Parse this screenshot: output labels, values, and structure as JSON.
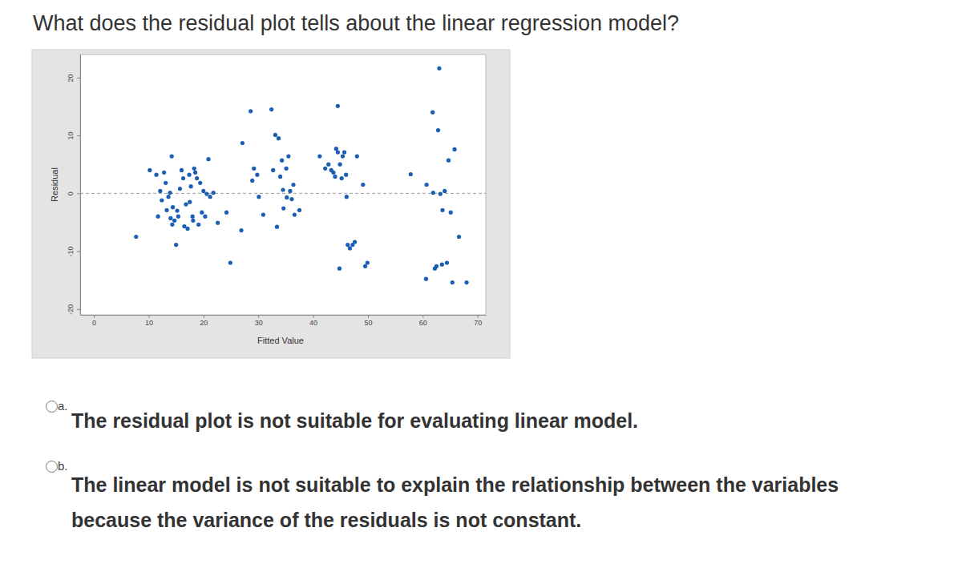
{
  "question": "What does the residual plot tells about the linear regression model?",
  "options": [
    {
      "label": "a.",
      "text": "The residual plot is not suitable for evaluating linear model."
    },
    {
      "label": "b.",
      "text": "The linear model is not suitable to explain the relationship between the variables because the variance of the residuals is not constant."
    }
  ],
  "chart_data": {
    "type": "scatter",
    "x_label": "Fitted Value",
    "y_label": "Residual",
    "color": "#1b5fb4",
    "marker": "circle",
    "reference_line": 0,
    "xlim": [
      -2.5,
      71.5
    ],
    "ylim": [
      -21,
      24
    ],
    "xticks": [
      0,
      10,
      20,
      30,
      40,
      50,
      60,
      70
    ],
    "yticks": [
      -20,
      -10,
      0,
      10,
      20
    ],
    "x": [
      7.7,
      10.2,
      11.4,
      11.7,
      12.1,
      12.4,
      12.8,
      13.1,
      13.3,
      13.6,
      13.9,
      14.0,
      14.2,
      14.3,
      14.4,
      14.7,
      15.0,
      15.2,
      15.4,
      15.7,
      16.0,
      16.3,
      16.5,
      16.8,
      17.1,
      17.4,
      17.5,
      17.7,
      18.0,
      18.1,
      18.3,
      18.5,
      18.8,
      19.1,
      19.4,
      19.7,
      20.0,
      20.3,
      20.6,
      20.9,
      21.2,
      21.8,
      22.6,
      24.2,
      24.9,
      26.9,
      27.1,
      28.6,
      28.9,
      29.2,
      29.8,
      30.1,
      30.9,
      32.4,
      32.7,
      33.1,
      33.4,
      33.7,
      34.0,
      34.3,
      34.5,
      34.6,
      35.1,
      35.2,
      35.5,
      35.8,
      36.1,
      36.4,
      36.6,
      37.5,
      41.2,
      42.2,
      42.8,
      43.3,
      43.7,
      44.0,
      44.2,
      44.5,
      44.5,
      44.8,
      44.9,
      45.2,
      45.4,
      45.7,
      46.0,
      46.1,
      46.3,
      46.7,
      47.2,
      47.6,
      48.0,
      49.1,
      49.5,
      49.9,
      57.8,
      60.6,
      60.7,
      61.8,
      61.9,
      62.2,
      62.5,
      62.8,
      63.0,
      63.2,
      63.5,
      63.6,
      64.0,
      64.4,
      64.7,
      65.1,
      65.4,
      65.8,
      66.6,
      68.0
    ],
    "values": [
      -7.5,
      4.0,
      3.2,
      -4.0,
      0.4,
      -1.2,
      3.6,
      1.8,
      -2.9,
      -0.6,
      0.1,
      -4.3,
      6.4,
      -5.4,
      -2.4,
      -4.7,
      -8.9,
      -3.0,
      -4.0,
      0.8,
      4.0,
      2.6,
      -5.7,
      -1.9,
      -6.1,
      3.2,
      -1.5,
      1.2,
      -4.0,
      -4.7,
      4.3,
      3.6,
      2.6,
      -5.4,
      1.8,
      -3.3,
      0.4,
      -4.0,
      -0.1,
      5.9,
      -0.6,
      0.1,
      -5.1,
      -3.3,
      -12.0,
      -6.4,
      8.7,
      14.2,
      2.2,
      4.3,
      3.2,
      -0.6,
      -3.7,
      14.5,
      4.0,
      10.1,
      -5.8,
      9.5,
      2.9,
      5.7,
      0.6,
      -2.6,
      4.3,
      -0.7,
      6.4,
      0.4,
      -1.0,
      1.5,
      -3.7,
      -2.9,
      6.4,
      4.3,
      5.0,
      4.0,
      3.6,
      2.9,
      7.7,
      15.1,
      7.1,
      -13.0,
      5.0,
      2.6,
      6.4,
      7.1,
      3.2,
      -0.6,
      -8.9,
      -9.5,
      -8.9,
      -8.4,
      6.4,
      1.5,
      -12.6,
      -12.0,
      3.3,
      -14.8,
      1.5,
      14.0,
      0.1,
      -13.0,
      -12.6,
      10.9,
      21.6,
      -0.1,
      -12.3,
      -2.9,
      0.4,
      -12.0,
      5.7,
      -3.3,
      -15.4,
      7.6,
      -7.5,
      -15.4
    ]
  }
}
